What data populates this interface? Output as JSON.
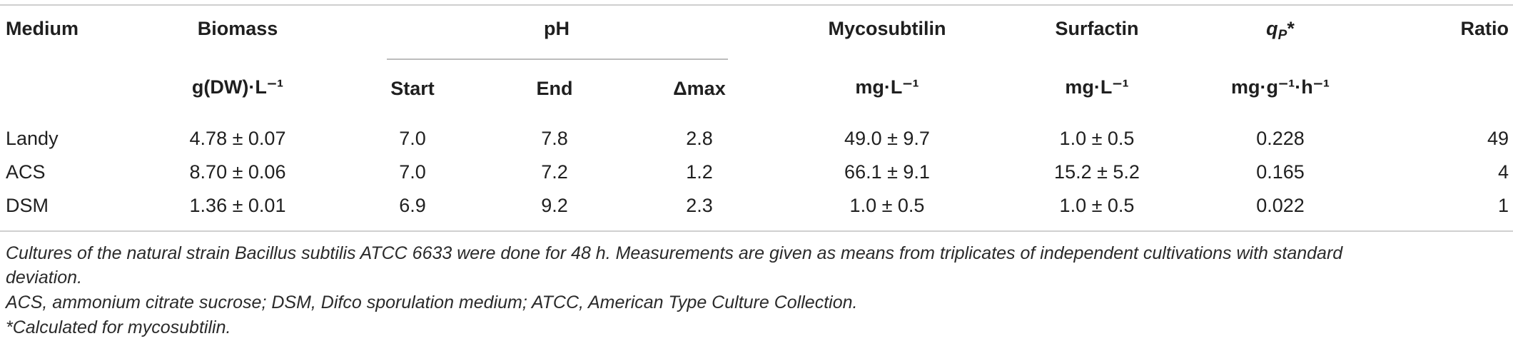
{
  "table": {
    "headers": {
      "medium": "Medium",
      "biomass": "Biomass",
      "ph": "pH",
      "mycosubtilin": "Mycosubtilin",
      "surfactin": "Surfactin",
      "qp_main": "q",
      "qp_sub": "P",
      "qp_star": "*",
      "ratio": "Ratio"
    },
    "subheaders": {
      "biomass_unit": "g(DW)·L⁻¹",
      "ph_start": "Start",
      "ph_end": "End",
      "ph_dmax": "Δmax",
      "mycosubtilin_unit": "mg·L⁻¹",
      "surfactin_unit": "mg·L⁻¹",
      "qp_unit": "mg·g⁻¹·h⁻¹"
    },
    "rows": [
      {
        "medium": "Landy",
        "biomass": "4.78 ± 0.07",
        "start": "7.0",
        "end": "7.8",
        "dmax": "2.8",
        "mycosubtilin": "49.0 ± 9.7",
        "surfactin": "1.0 ± 0.5",
        "qp": "0.228",
        "ratio": "49"
      },
      {
        "medium": "ACS",
        "biomass": "8.70 ± 0.06",
        "start": "7.0",
        "end": "7.2",
        "dmax": "1.2",
        "mycosubtilin": "66.1 ± 9.1",
        "surfactin": "15.2 ± 5.2",
        "qp": "0.165",
        "ratio": "4"
      },
      {
        "medium": "DSM",
        "biomass": "1.36 ± 0.01",
        "start": "6.9",
        "end": "9.2",
        "dmax": "2.3",
        "mycosubtilin": "1.0 ± 0.5",
        "surfactin": "1.0 ± 0.5",
        "qp": "0.022",
        "ratio": "1"
      }
    ]
  },
  "footnotes": {
    "line1": "Cultures of the natural strain Bacillus subtilis ATCC 6633 were done for 48 h. Measurements are given as means from triplicates of independent cultivations with standard",
    "line2": "deviation.",
    "line3": "ACS, ammonium citrate sucrose; DSM, Difco sporulation medium; ATCC, American Type Culture Collection.",
    "line4": "*Calculated for mycosubtilin."
  }
}
